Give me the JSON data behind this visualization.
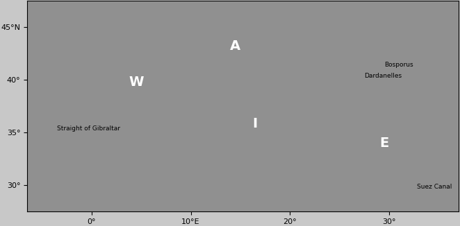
{
  "title": "",
  "figsize": [
    6.62,
    3.26
  ],
  "dpi": 100,
  "lon_min": -6.5,
  "lon_max": 37.0,
  "lat_min": 27.5,
  "lat_max": 47.5,
  "background_color": "#c8c8c8",
  "land_color": "#c8c8c8",
  "ocean_color": "#808080",
  "deep_color": "#1a1a1a",
  "tick_color": "#000000",
  "label_fontsize": 8,
  "region_labels": [
    {
      "text": "W",
      "lon": 4.5,
      "lat": 39.8,
      "fontsize": 14,
      "fontweight": "bold",
      "color": "white"
    },
    {
      "text": "A",
      "lon": 14.5,
      "lat": 43.2,
      "fontsize": 14,
      "fontweight": "bold",
      "color": "white"
    },
    {
      "text": "I",
      "lon": 16.5,
      "lat": 35.8,
      "fontsize": 14,
      "fontweight": "bold",
      "color": "white"
    },
    {
      "text": "E",
      "lon": 29.5,
      "lat": 34.0,
      "fontsize": 14,
      "fontweight": "bold",
      "color": "white"
    }
  ],
  "text_labels": [
    {
      "text": "Straight of Gibraltar",
      "lon": -3.5,
      "lat": 35.4,
      "fontsize": 6.5,
      "color": "black",
      "ha": "left"
    },
    {
      "text": "Bosporus",
      "lon": 29.5,
      "lat": 41.4,
      "fontsize": 6.5,
      "color": "black",
      "ha": "left"
    },
    {
      "text": "Dardanelles",
      "lon": 27.5,
      "lat": 40.4,
      "fontsize": 6.5,
      "color": "black",
      "ha": "left"
    },
    {
      "text": "Suez Canal",
      "lon": 32.8,
      "lat": 29.8,
      "fontsize": 6.5,
      "color": "black",
      "ha": "left"
    }
  ],
  "xticks": [
    0,
    10,
    20,
    30
  ],
  "xtick_labels": [
    "0°",
    "10°E",
    "20°",
    "30°"
  ],
  "yticks": [
    30,
    35,
    40,
    45
  ],
  "ytick_labels": [
    "30°",
    "35°",
    "40°",
    "45°N"
  ]
}
